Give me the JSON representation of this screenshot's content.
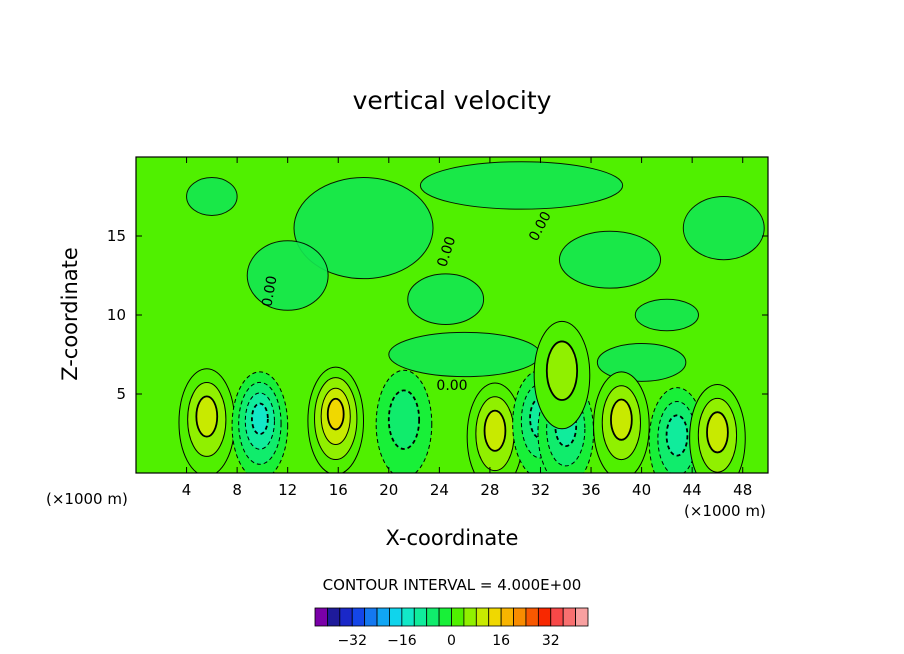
{
  "chart_data": {
    "type": "heatmap",
    "subtype": "filled-contour",
    "title": "vertical velocity",
    "xlabel": "X-coordinate",
    "ylabel": "Z-coordinate",
    "x_unit_note": "(×1000 m)",
    "xlim": [
      0,
      50
    ],
    "ylim": [
      0,
      20
    ],
    "x_ticks": [
      4,
      8,
      12,
      16,
      20,
      24,
      28,
      32,
      36,
      40,
      44,
      48
    ],
    "y_ticks": [
      5,
      10,
      15
    ],
    "contour_interval_text": "CONTOUR INTERVAL = 4.000E+00",
    "contour_interval": 4.0,
    "contour_labels": [
      {
        "text": "0.00",
        "x": 10.6,
        "y": 11.5,
        "angle": -80
      },
      {
        "text": "0.00",
        "x": 24.6,
        "y": 14.0,
        "angle": -72
      },
      {
        "text": "0.00",
        "x": 32.0,
        "y": 15.6,
        "angle": -62
      },
      {
        "text": "0.00",
        "x": 25.0,
        "y": 5.5,
        "angle": 0
      }
    ],
    "features": [
      {
        "kind": "updraft",
        "x": 5.6,
        "y": 3.2,
        "peak": 8
      },
      {
        "kind": "downdraft",
        "x": 9.8,
        "y": 3.0,
        "peak": -12
      },
      {
        "kind": "updraft",
        "x": 15.8,
        "y": 3.3,
        "peak": 12
      },
      {
        "kind": "downdraft",
        "x": 21.2,
        "y": 3.1,
        "peak": -4
      },
      {
        "kind": "updraft",
        "x": 28.4,
        "y": 2.3,
        "peak": 8
      },
      {
        "kind": "downdraft",
        "x": 32.0,
        "y": 3.1,
        "peak": -8
      },
      {
        "kind": "downdraft",
        "x": 34.0,
        "y": 2.6,
        "peak": -8
      },
      {
        "kind": "updraft",
        "x": 33.7,
        "y": 6.2,
        "peak": 4
      },
      {
        "kind": "updraft",
        "x": 38.4,
        "y": 3.0,
        "peak": 8
      },
      {
        "kind": "downdraft",
        "x": 42.8,
        "y": 2.0,
        "peak": -8
      },
      {
        "kind": "updraft",
        "x": 46.0,
        "y": 2.2,
        "peak": 8
      }
    ],
    "colorbar": {
      "labels": [
        -32,
        -16,
        0,
        16,
        32
      ],
      "colors": [
        "#7a00a8",
        "#1e1a9a",
        "#1a28c8",
        "#1446e8",
        "#1478f0",
        "#10a6f4",
        "#10d4ec",
        "#12e8c8",
        "#10ec9c",
        "#10ec6c",
        "#18f038",
        "#50f000",
        "#90f000",
        "#c8ea00",
        "#f0d800",
        "#f8b400",
        "#f88c00",
        "#f85800",
        "#f82800",
        "#f84848",
        "#f87070",
        "#f8a0a0"
      ]
    },
    "grid": false
  }
}
